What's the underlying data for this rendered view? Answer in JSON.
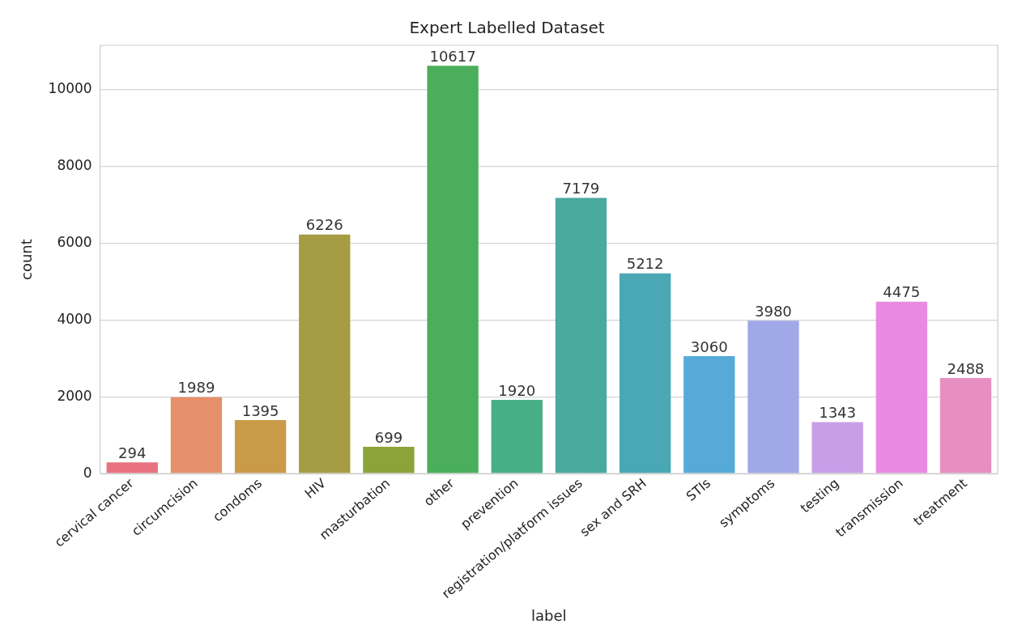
{
  "chart_data": {
    "type": "bar",
    "title": "Expert Labelled Dataset",
    "xlabel": "label",
    "ylabel": "count",
    "categories": [
      "cervical cancer",
      "circumcision",
      "condoms",
      "HIV",
      "masturbation",
      "other",
      "prevention",
      "registration/platform issues",
      "sex and SRH",
      "STIs",
      "symptoms",
      "testing",
      "transmission",
      "treatment"
    ],
    "values": [
      294,
      1989,
      1395,
      6226,
      699,
      10617,
      1920,
      7179,
      5212,
      3060,
      3980,
      1343,
      4475,
      2488
    ],
    "colors": [
      "#e8727f",
      "#e5906a",
      "#c99a48",
      "#a59c43",
      "#8aa43a",
      "#4aae5a",
      "#48ae86",
      "#4aaa9e",
      "#4aa7b4",
      "#56aad8",
      "#a0a8e8",
      "#c89ee8",
      "#e88ae0",
      "#e68fc0"
    ],
    "ylim": [
      0,
      11150
    ],
    "yticks": [
      0,
      2000,
      4000,
      6000,
      8000,
      10000
    ],
    "grid": "y",
    "data_labels": true
  }
}
